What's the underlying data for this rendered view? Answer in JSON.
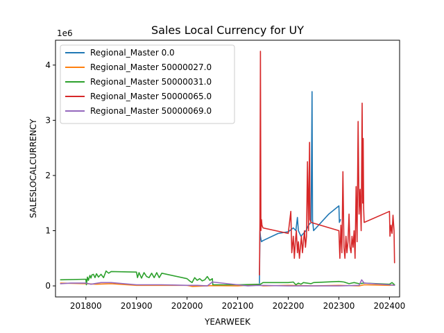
{
  "chart_data": {
    "type": "line",
    "title": "Sales Local Currency for UY",
    "xlabel": "YEARWEEK",
    "ylabel": "SALESLOCALCURRENCY",
    "y_multiplier_label": "1e6",
    "xlim": [
      201740,
      202420
    ],
    "ylim": [
      -200000,
      4450000
    ],
    "x_ticks": [
      201800,
      201900,
      202000,
      202100,
      202200,
      202300,
      202400
    ],
    "x_tick_labels": [
      "201800",
      "201900",
      "202000",
      "202100",
      "202200",
      "202300",
      "202400"
    ],
    "y_ticks": [
      0,
      1000000,
      2000000,
      3000000,
      4000000
    ],
    "y_tick_labels": [
      "0",
      "1",
      "2",
      "3",
      "4"
    ],
    "legend_position": "upper-left",
    "grid": false,
    "series": [
      {
        "name": "Regional_Master 0.0",
        "color": "#1f77b4",
        "points": [
          [
            202143,
            50000
          ],
          [
            202144,
            1000000
          ],
          [
            202145,
            900000
          ],
          [
            202146,
            850000
          ],
          [
            202147,
            800000
          ],
          [
            202150,
            820000
          ],
          [
            202180,
            950000
          ],
          [
            202200,
            980000
          ],
          [
            202210,
            1050000
          ],
          [
            202215,
            1000000
          ],
          [
            202218,
            1240000
          ],
          [
            202220,
            1000000
          ],
          [
            202225,
            900000
          ],
          [
            202230,
            950000
          ],
          [
            202235,
            1000000
          ],
          [
            202240,
            1100000
          ],
          [
            202245,
            1150000
          ],
          [
            202247,
            3520000
          ],
          [
            202248,
            1200000
          ],
          [
            202250,
            1000000
          ],
          [
            202260,
            1100000
          ],
          [
            202280,
            1300000
          ],
          [
            202300,
            1450000
          ],
          [
            202301,
            1150000
          ],
          [
            202303,
            1200000
          ]
        ]
      },
      {
        "name": "Regional_Master 50000027.0",
        "color": "#ff7f0e",
        "points": [
          [
            201750,
            50000
          ],
          [
            201800,
            40000
          ],
          [
            201820,
            30000
          ],
          [
            201850,
            40000
          ],
          [
            201900,
            10000
          ],
          [
            201950,
            10000
          ],
          [
            202000,
            10000
          ],
          [
            202010,
            -10000
          ],
          [
            202050,
            5000
          ],
          [
            202100,
            0
          ],
          [
            202140,
            20000
          ],
          [
            202150,
            0
          ],
          [
            202200,
            10000
          ],
          [
            202250,
            0
          ],
          [
            202300,
            10000
          ],
          [
            202340,
            0
          ],
          [
            202350,
            20000
          ],
          [
            202400,
            10000
          ],
          [
            202410,
            20000
          ]
        ]
      },
      {
        "name": "Regional_Master 50000031.0",
        "color": "#2ca02c",
        "points": [
          [
            201750,
            110000
          ],
          [
            201800,
            120000
          ],
          [
            201801,
            20000
          ],
          [
            201803,
            160000
          ],
          [
            201805,
            100000
          ],
          [
            201808,
            190000
          ],
          [
            201810,
            140000
          ],
          [
            201812,
            200000
          ],
          [
            201815,
            210000
          ],
          [
            201818,
            150000
          ],
          [
            201821,
            220000
          ],
          [
            201825,
            160000
          ],
          [
            201830,
            210000
          ],
          [
            201835,
            150000
          ],
          [
            201840,
            270000
          ],
          [
            201845,
            230000
          ],
          [
            201850,
            260000
          ],
          [
            201900,
            250000
          ],
          [
            201902,
            150000
          ],
          [
            201905,
            240000
          ],
          [
            201910,
            140000
          ],
          [
            201915,
            240000
          ],
          [
            201920,
            170000
          ],
          [
            201925,
            150000
          ],
          [
            201930,
            230000
          ],
          [
            201935,
            150000
          ],
          [
            201940,
            240000
          ],
          [
            201945,
            150000
          ],
          [
            201950,
            230000
          ],
          [
            202000,
            130000
          ],
          [
            202005,
            90000
          ],
          [
            202010,
            60000
          ],
          [
            202015,
            150000
          ],
          [
            202020,
            100000
          ],
          [
            202025,
            130000
          ],
          [
            202030,
            90000
          ],
          [
            202035,
            110000
          ],
          [
            202040,
            170000
          ],
          [
            202045,
            100000
          ],
          [
            202050,
            130000
          ],
          [
            202051,
            20000
          ],
          [
            202100,
            20000
          ],
          [
            202145,
            30000
          ],
          [
            202150,
            60000
          ],
          [
            202200,
            60000
          ],
          [
            202210,
            70000
          ],
          [
            202215,
            20000
          ],
          [
            202220,
            50000
          ],
          [
            202225,
            30000
          ],
          [
            202230,
            60000
          ],
          [
            202245,
            40000
          ],
          [
            202250,
            60000
          ],
          [
            202300,
            80000
          ],
          [
            202310,
            70000
          ],
          [
            202320,
            40000
          ],
          [
            202330,
            60000
          ],
          [
            202340,
            40000
          ],
          [
            202350,
            50000
          ],
          [
            202400,
            30000
          ],
          [
            202405,
            60000
          ],
          [
            202410,
            20000
          ]
        ]
      },
      {
        "name": "Regional_Master 50000065.0",
        "color": "#d62728",
        "points": [
          [
            202143,
            200000
          ],
          [
            202144,
            1200000
          ],
          [
            202145,
            4250000
          ],
          [
            202146,
            1000000
          ],
          [
            202147,
            1200000
          ],
          [
            202148,
            1100000
          ],
          [
            202150,
            1050000
          ],
          [
            202200,
            950000
          ],
          [
            202205,
            1350000
          ],
          [
            202207,
            600000
          ],
          [
            202210,
            900000
          ],
          [
            202212,
            500000
          ],
          [
            202214,
            800000
          ],
          [
            202216,
            1000000
          ],
          [
            202218,
            600000
          ],
          [
            202220,
            800000
          ],
          [
            202222,
            500000
          ],
          [
            202224,
            700000
          ],
          [
            202226,
            900000
          ],
          [
            202228,
            600000
          ],
          [
            202230,
            800000
          ],
          [
            202232,
            1000000
          ],
          [
            202234,
            700000
          ],
          [
            202236,
            900000
          ],
          [
            202238,
            2250000
          ],
          [
            202240,
            1000000
          ],
          [
            202242,
            2600000
          ],
          [
            202243,
            1200000
          ],
          [
            202245,
            1150000
          ],
          [
            202300,
            1000000
          ],
          [
            202302,
            500000
          ],
          [
            202304,
            1100000
          ],
          [
            202306,
            600000
          ],
          [
            202308,
            2070000
          ],
          [
            202310,
            700000
          ],
          [
            202312,
            500000
          ],
          [
            202314,
            900000
          ],
          [
            202316,
            600000
          ],
          [
            202318,
            800000
          ],
          [
            202320,
            1300000
          ],
          [
            202322,
            700000
          ],
          [
            202324,
            600000
          ],
          [
            202326,
            900000
          ],
          [
            202328,
            700000
          ],
          [
            202330,
            1000000
          ],
          [
            202332,
            500000
          ],
          [
            202334,
            1800000
          ],
          [
            202336,
            800000
          ],
          [
            202338,
            2980000
          ],
          [
            202340,
            1300000
          ],
          [
            202342,
            1750000
          ],
          [
            202344,
            1000000
          ],
          [
            202346,
            3310000
          ],
          [
            202347,
            1500000
          ],
          [
            202348,
            2670000
          ],
          [
            202349,
            1400000
          ],
          [
            202350,
            1150000
          ],
          [
            202400,
            1350000
          ],
          [
            202401,
            900000
          ],
          [
            202403,
            1100000
          ],
          [
            202405,
            950000
          ],
          [
            202407,
            1280000
          ],
          [
            202409,
            1000000
          ],
          [
            202410,
            420000
          ]
        ]
      },
      {
        "name": "Regional_Master 50000069.0",
        "color": "#9467bd",
        "points": [
          [
            201750,
            40000
          ],
          [
            201770,
            50000
          ],
          [
            201800,
            50000
          ],
          [
            201805,
            40000
          ],
          [
            201810,
            30000
          ],
          [
            201830,
            60000
          ],
          [
            201850,
            60000
          ],
          [
            201900,
            20000
          ],
          [
            201950,
            20000
          ],
          [
            202000,
            10000
          ],
          [
            202020,
            10000
          ],
          [
            202040,
            0
          ],
          [
            202050,
            70000
          ],
          [
            202100,
            20000
          ],
          [
            202120,
            0
          ],
          [
            202140,
            10000
          ],
          [
            202200,
            0
          ],
          [
            202250,
            0
          ],
          [
            202300,
            0
          ],
          [
            202340,
            10000
          ],
          [
            202345,
            110000
          ],
          [
            202350,
            50000
          ],
          [
            202400,
            20000
          ],
          [
            202410,
            10000
          ]
        ]
      }
    ]
  }
}
